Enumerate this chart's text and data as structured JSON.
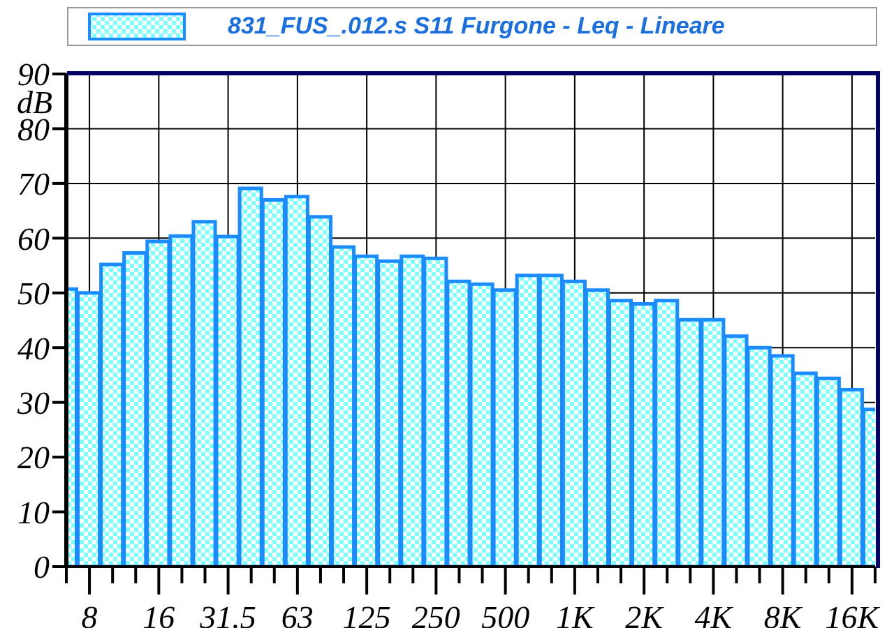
{
  "chart_data": {
    "type": "bar",
    "ylabel": "dB",
    "categories": [
      null,
      "8",
      null,
      null,
      "16",
      null,
      null,
      "31.5",
      null,
      null,
      "63",
      null,
      null,
      "125",
      null,
      null,
      "250",
      null,
      null,
      "500",
      null,
      null,
      "1K",
      null,
      null,
      "2K",
      null,
      null,
      "4K",
      null,
      null,
      "8K",
      null,
      null,
      "16K",
      null
    ],
    "series": [
      {
        "name": "831_FUS_.012.s S11 Furgone - Leq - Lineare",
        "color": "#1a8cff",
        "values": [
          50.7,
          50,
          55.2,
          57.3,
          59.4,
          60.4,
          63,
          60.3,
          69.1,
          67,
          67.6,
          63.9,
          58.4,
          56.7,
          55.8,
          56.7,
          56.3,
          52.1,
          51.6,
          50.5,
          53.2,
          53.2,
          52.1,
          50.5,
          48.6,
          48,
          48.6,
          45.1,
          45.1,
          42.1,
          40,
          38.5,
          35.3,
          34.4,
          32.3,
          28.7
        ]
      }
    ],
    "ylim": [
      0,
      90
    ],
    "yticks": [
      0,
      10,
      20,
      30,
      40,
      50,
      60,
      70,
      80,
      90
    ],
    "grid": true,
    "legend": "top"
  }
}
